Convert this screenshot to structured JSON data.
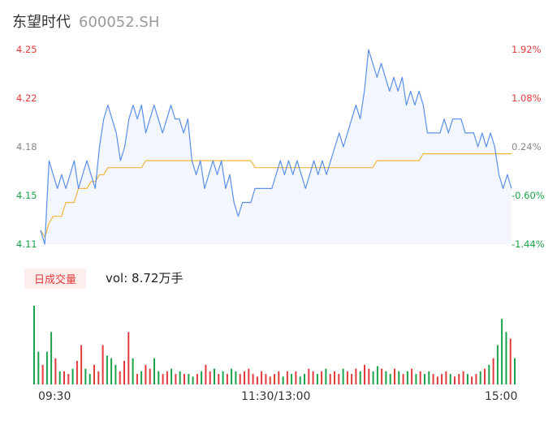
{
  "header": {
    "name": "东望时代",
    "code": "600052.SH"
  },
  "chart_data": {
    "type": "line",
    "price_axis": {
      "ticks": [
        "4.25",
        "4.22",
        "4.18",
        "4.15",
        "4.11"
      ],
      "ylim": [
        4.11,
        4.25
      ]
    },
    "pct_axis": {
      "ticks": [
        "1.92%",
        "1.08%",
        "0.24%",
        "-0.60%",
        "-1.44%"
      ]
    },
    "prev_close": 4.17,
    "series": [
      {
        "role": "price",
        "color": "#5b8fe8",
        "values": [
          4.12,
          4.11,
          4.17,
          4.16,
          4.15,
          4.16,
          4.15,
          4.16,
          4.17,
          4.15,
          4.16,
          4.17,
          4.16,
          4.15,
          4.18,
          4.2,
          4.21,
          4.2,
          4.19,
          4.17,
          4.18,
          4.2,
          4.21,
          4.2,
          4.21,
          4.19,
          4.2,
          4.21,
          4.2,
          4.19,
          4.2,
          4.21,
          4.2,
          4.2,
          4.19,
          4.2,
          4.17,
          4.16,
          4.17,
          4.15,
          4.16,
          4.17,
          4.16,
          4.17,
          4.15,
          4.16,
          4.14,
          4.13,
          4.14,
          4.14,
          4.14,
          4.15,
          4.15,
          4.15,
          4.15,
          4.15,
          4.16,
          4.17,
          4.16,
          4.17,
          4.16,
          4.17,
          4.16,
          4.15,
          4.16,
          4.17,
          4.16,
          4.17,
          4.16,
          4.17,
          4.18,
          4.19,
          4.18,
          4.19,
          4.2,
          4.21,
          4.2,
          4.22,
          4.25,
          4.24,
          4.23,
          4.24,
          4.23,
          4.22,
          4.23,
          4.22,
          4.23,
          4.21,
          4.22,
          4.21,
          4.22,
          4.21,
          4.19,
          4.19,
          4.19,
          4.19,
          4.2,
          4.19,
          4.2,
          4.2,
          4.2,
          4.19,
          4.19,
          4.19,
          4.18,
          4.19,
          4.18,
          4.19,
          4.18,
          4.16,
          4.15,
          4.16,
          4.15
        ]
      },
      {
        "role": "average",
        "color": "#f2b53f",
        "values": [
          4.12,
          4.115,
          4.125,
          4.13,
          4.13,
          4.13,
          4.14,
          4.14,
          4.14,
          4.15,
          4.15,
          4.15,
          4.155,
          4.155,
          4.16,
          4.16,
          4.165,
          4.165,
          4.165,
          4.165,
          4.165,
          4.165,
          4.165,
          4.165,
          4.165,
          4.17,
          4.17,
          4.17,
          4.17,
          4.17,
          4.17,
          4.17,
          4.17,
          4.17,
          4.17,
          4.17,
          4.17,
          4.17,
          4.17,
          4.17,
          4.17,
          4.17,
          4.17,
          4.17,
          4.17,
          4.17,
          4.17,
          4.17,
          4.17,
          4.17,
          4.17,
          4.165,
          4.165,
          4.165,
          4.165,
          4.165,
          4.165,
          4.165,
          4.165,
          4.165,
          4.165,
          4.165,
          4.165,
          4.165,
          4.165,
          4.165,
          4.165,
          4.165,
          4.165,
          4.165,
          4.165,
          4.165,
          4.165,
          4.165,
          4.165,
          4.165,
          4.165,
          4.165,
          4.165,
          4.165,
          4.17,
          4.17,
          4.17,
          4.17,
          4.17,
          4.17,
          4.17,
          4.17,
          4.17,
          4.17,
          4.17,
          4.175,
          4.175,
          4.175,
          4.175,
          4.175,
          4.175,
          4.175,
          4.175,
          4.175,
          4.175,
          4.175,
          4.175,
          4.175,
          4.175,
          4.175,
          4.175,
          4.175,
          4.175,
          4.175,
          4.175,
          4.175,
          4.175
        ]
      }
    ],
    "volume": {
      "label": "日成交量",
      "summary": "vol: 8.72万手",
      "values": [
        60,
        25,
        15,
        25,
        40,
        20,
        10,
        10,
        8,
        12,
        18,
        30,
        12,
        8,
        15,
        10,
        30,
        22,
        20,
        15,
        10,
        18,
        40,
        20,
        8,
        10,
        15,
        12,
        20,
        10,
        8,
        10,
        12,
        8,
        10,
        8,
        8,
        6,
        8,
        10,
        15,
        10,
        12,
        8,
        10,
        8,
        12,
        10,
        8,
        10,
        12,
        8,
        6,
        10,
        8,
        6,
        8,
        10,
        6,
        10,
        8,
        10,
        6,
        8,
        12,
        10,
        8,
        10,
        12,
        8,
        10,
        8,
        12,
        10,
        8,
        12,
        10,
        15,
        12,
        10,
        14,
        12,
        10,
        8,
        12,
        10,
        8,
        10,
        12,
        8,
        10,
        8,
        10,
        8,
        6,
        8,
        10,
        8,
        6,
        8,
        10,
        8,
        6,
        8,
        10,
        12,
        15,
        20,
        30,
        50,
        40,
        35,
        20
      ],
      "colors_up": "#e23b3b",
      "colors_down": "#1aa34a"
    },
    "time_labels": [
      "09:30",
      "11:30/13:00",
      "15:00"
    ],
    "grid": false
  }
}
